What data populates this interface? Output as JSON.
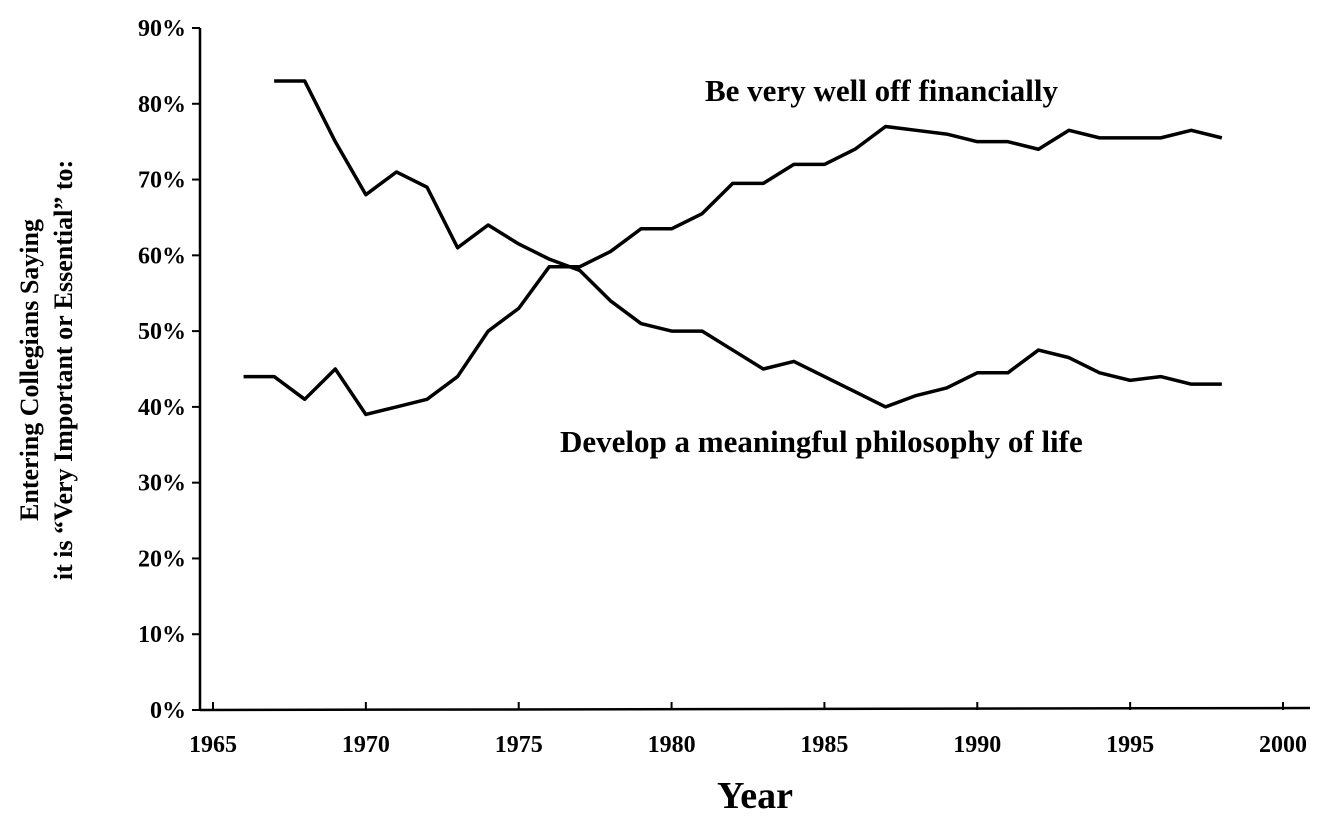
{
  "chart_data": {
    "type": "line",
    "x_label": "Year",
    "y_label": [
      "Entering Collegians Saying",
      "it is “Very Important or Essential” to:"
    ],
    "xlim": [
      1965,
      2000
    ],
    "xticks": [
      1965,
      1970,
      1975,
      1980,
      1985,
      1990,
      1995,
      2000
    ],
    "ylim": [
      0,
      90
    ],
    "yticks": [
      {
        "value": 0,
        "label": "0%"
      },
      {
        "value": 10,
        "label": "10%"
      },
      {
        "value": 20,
        "label": "20%"
      },
      {
        "value": 30,
        "label": "30%"
      },
      {
        "value": 40,
        "label": "40%"
      },
      {
        "value": 50,
        "label": "50%"
      },
      {
        "value": 60,
        "label": "60%"
      },
      {
        "value": 70,
        "label": "70%"
      },
      {
        "value": 80,
        "label": "80%"
      },
      {
        "value": 90,
        "label": "90%"
      }
    ],
    "series": [
      {
        "name": "Be very well off financially",
        "color": "#000000",
        "x": [
          1966,
          1967,
          1968,
          1969,
          1970,
          1971,
          1972,
          1973,
          1974,
          1975,
          1976,
          1977,
          1978,
          1979,
          1980,
          1981,
          1982,
          1983,
          1984,
          1985,
          1986,
          1987,
          1988,
          1989,
          1990,
          1991,
          1992,
          1993,
          1994,
          1995,
          1996,
          1997,
          1998
        ],
        "values": [
          44,
          44,
          41,
          45,
          39,
          40,
          41,
          44,
          50,
          53,
          58.5,
          58.5,
          60.5,
          63.5,
          63.5,
          65.5,
          69.5,
          69.5,
          72,
          72,
          74,
          77,
          76.5,
          76,
          75,
          75,
          74,
          76.5,
          75.5,
          75.5,
          75.5,
          76.5,
          75.5
        ]
      },
      {
        "name": "Develop a meaningful philosophy of life",
        "color": "#000000",
        "x": [
          1967,
          1968,
          1969,
          1970,
          1971,
          1972,
          1973,
          1974,
          1975,
          1976,
          1977,
          1978,
          1979,
          1980,
          1981,
          1982,
          1983,
          1984,
          1985,
          1986,
          1987,
          1988,
          1989,
          1990,
          1991,
          1992,
          1993,
          1994,
          1995,
          1996,
          1997,
          1998
        ],
        "values": [
          83,
          83,
          75,
          68,
          71,
          69,
          61,
          64,
          61.5,
          59.5,
          58,
          54,
          51,
          50,
          50,
          47.5,
          45,
          46,
          44,
          42,
          40,
          41.5,
          42.5,
          44.5,
          44.5,
          47.5,
          46.5,
          44.5,
          43.5,
          44,
          43,
          43
        ]
      }
    ]
  }
}
